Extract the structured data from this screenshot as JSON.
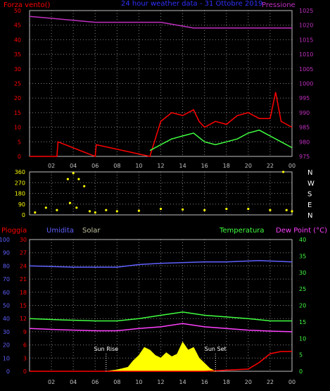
{
  "chart_data": [
    {
      "type": "line",
      "panel": "top",
      "title": "24 hour weather data - 31 Ottobre 2019",
      "left_axis_label": "Forza vento()",
      "right_axis_label": "Pressione",
      "left_ticks": [
        "0",
        "5",
        "10",
        "15",
        "20",
        "25",
        "30",
        "35",
        "40",
        "45",
        "50"
      ],
      "right_ticks": [
        "975",
        "980",
        "985",
        "990",
        "995",
        "1000",
        "1005",
        "1010",
        "1015",
        "1020",
        "1025"
      ],
      "ylim_left": [
        0,
        50
      ],
      "ylim_right": [
        975,
        1025
      ],
      "x_ticks": [
        "02",
        "04",
        "06",
        "08",
        "10",
        "12",
        "14",
        "16",
        "18",
        "20",
        "22",
        "00"
      ],
      "grid": true,
      "series": [
        {
          "name": "Pressione",
          "color": "#c030c0",
          "axis": "right",
          "x": [
            0,
            3,
            6,
            9,
            12,
            15,
            18,
            21,
            24
          ],
          "values": [
            1023,
            1022,
            1021,
            1021,
            1021,
            1019,
            1019,
            1019,
            1019
          ]
        },
        {
          "name": "Wind gust",
          "color": "#ff0000",
          "axis": "left",
          "x": [
            0,
            2.5,
            2.6,
            6,
            6.1,
            11,
            11.5,
            12,
            13,
            14,
            15,
            15.5,
            16,
            17,
            18,
            19,
            20,
            21,
            22,
            22.5,
            23,
            24
          ],
          "values": [
            0,
            0,
            5,
            0,
            4,
            0,
            6,
            12,
            15,
            14,
            16,
            12,
            10,
            12,
            11,
            14,
            15,
            13,
            13,
            22,
            12,
            10
          ]
        },
        {
          "name": "Wind average",
          "color": "#40ff40",
          "axis": "left",
          "x": [
            11,
            12,
            13,
            14,
            15,
            16,
            17,
            18,
            19,
            20,
            21,
            22,
            23,
            24
          ],
          "values": [
            2,
            4,
            6,
            7,
            8,
            5,
            4,
            5,
            6,
            8,
            9,
            7,
            5,
            3
          ]
        }
      ]
    },
    {
      "type": "scatter",
      "panel": "direction",
      "left_ticks": [
        "0",
        "90",
        "180",
        "270",
        "360"
      ],
      "ylim": [
        0,
        360
      ],
      "right_labels": [
        "N",
        "W",
        "S",
        "E",
        "N"
      ],
      "series": [
        {
          "name": "Direzione vento",
          "color": "#ffff00",
          "x": [
            0.5,
            1.5,
            2.5,
            3.5,
            3.7,
            4.0,
            4.3,
            4.5,
            5.0,
            5.5,
            6.0,
            7.0,
            8.0,
            10.0,
            12.0,
            14.0,
            16.0,
            18.0,
            20.0,
            22.0,
            23.2,
            23.5,
            24.0
          ],
          "values": [
            20,
            60,
            40,
            300,
            100,
            350,
            60,
            300,
            240,
            30,
            20,
            40,
            30,
            35,
            50,
            45,
            40,
            50,
            50,
            40,
            360,
            40,
            30
          ]
        }
      ]
    },
    {
      "type": "line",
      "panel": "bottom",
      "labels": {
        "pioggia": "Pioggia",
        "umidita": "Umidita",
        "solar": "Solar",
        "temperatura": "Temperatura",
        "dew_point": "Dew Point (°C)",
        "sun_rise": "Sun Rise",
        "sun_set": "Sun Set"
      },
      "axis1_ticks": [
        "0",
        "10",
        "20",
        "30",
        "40",
        "50",
        "60",
        "70",
        "80",
        "90",
        "100"
      ],
      "axis2_ticks": [
        "0",
        "3",
        "6",
        "9",
        "12",
        "15",
        "18",
        "21",
        "24",
        "27",
        "30"
      ],
      "axis3_ticks": [
        "0",
        "5",
        "10",
        "15",
        "20",
        "25",
        "30",
        "35",
        "40"
      ],
      "ylim_rain": [
        0,
        30
      ],
      "ylim_humidity": [
        0,
        100
      ],
      "ylim_temp": [
        0,
        40
      ],
      "x_ticks": [
        "02",
        "04",
        "06",
        "08",
        "10",
        "12",
        "14",
        "16",
        "18",
        "20",
        "22",
        "00"
      ],
      "sun_rise_hour": 7,
      "sun_set_hour": 17,
      "series": [
        {
          "name": "Umidita",
          "color": "#6060ff",
          "axis": "humidity",
          "x": [
            0,
            4,
            8,
            10,
            12,
            16,
            18,
            21,
            24
          ],
          "values": [
            80,
            79,
            79,
            81,
            82,
            83,
            83,
            84,
            83
          ]
        },
        {
          "name": "Temperatura",
          "color": "#40ff40",
          "axis": "temp",
          "x": [
            0,
            3,
            6,
            8,
            10,
            12,
            14,
            16,
            18,
            20,
            22,
            24
          ],
          "values": [
            16,
            15.6,
            15.3,
            15.3,
            16,
            17,
            18,
            17,
            16.5,
            16,
            15.3,
            15.3
          ]
        },
        {
          "name": "Dew Point",
          "color": "#ff40ff",
          "axis": "temp",
          "x": [
            0,
            3,
            6,
            8,
            10,
            12,
            14,
            16,
            18,
            20,
            22,
            24
          ],
          "values": [
            13,
            12.6,
            12.3,
            12.3,
            13,
            13.5,
            14.5,
            13.5,
            13,
            12.5,
            12.2,
            12
          ]
        },
        {
          "name": "Solar",
          "color": "#ffff00",
          "axis": "humidity",
          "fill": true,
          "x": [
            7,
            8,
            9,
            9.5,
            10,
            10.5,
            11,
            11.5,
            12,
            12.5,
            13,
            13.5,
            14,
            14.5,
            15,
            15.5,
            16,
            16.5,
            17
          ],
          "values": [
            0,
            1,
            3,
            8,
            12,
            18,
            16,
            12,
            10,
            14,
            11,
            13,
            22,
            16,
            18,
            10,
            6,
            2,
            0
          ]
        },
        {
          "name": "Pioggia",
          "color": "#ff0000",
          "axis": "rain",
          "x": [
            0,
            16,
            20,
            21,
            22,
            23,
            24
          ],
          "values": [
            0,
            0,
            0.5,
            2.0,
            4.0,
            4.5,
            4.5
          ]
        }
      ]
    }
  ],
  "colors": {
    "grid": "#808080",
    "frame": "#c0c0c0",
    "title": "#3030ff",
    "red": "#ff0000",
    "pressure": "#c030c0",
    "blue": "#6060ff",
    "green": "#40ff40",
    "magenta": "#ff40ff",
    "yellow": "#ffff00",
    "white": "#ffffff",
    "solar_label": "#c0c0a0"
  }
}
